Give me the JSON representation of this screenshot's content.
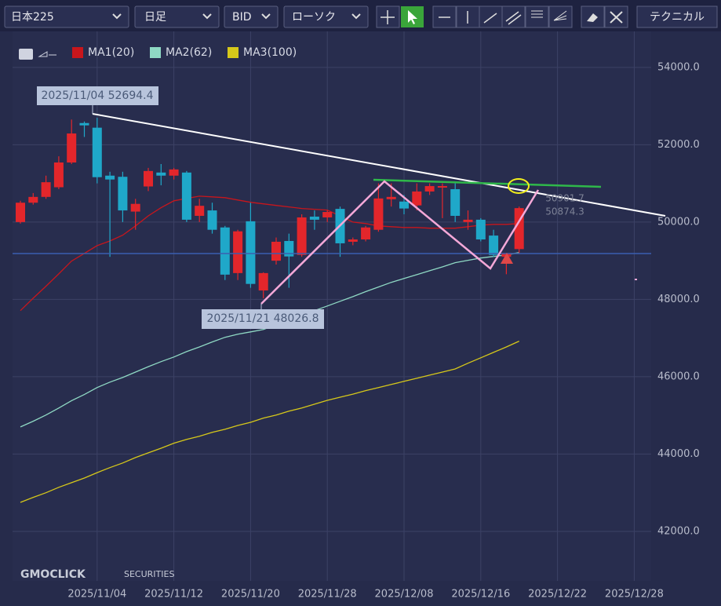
{
  "toolbar": {
    "symbol": "日本225",
    "period": "日足",
    "price": "BID",
    "chart_style": "ローソク",
    "technical": "テクニカル"
  },
  "watermark": {
    "brand": "GMOCLICK",
    "suffix": "SECURITIES"
  },
  "chart_data": {
    "type": "candlestick",
    "categories": [
      null,
      null,
      null,
      null,
      null,
      null,
      "2025/11/04",
      null,
      null,
      null,
      null,
      null,
      "2025/11/12",
      null,
      null,
      null,
      null,
      null,
      "2025/11/20",
      null,
      null,
      null,
      null,
      null,
      "2025/11/28",
      null,
      null,
      null,
      null,
      null,
      "2025/12/08",
      null,
      null,
      null,
      null,
      null,
      "2025/12/16",
      null,
      null,
      null,
      null,
      null,
      "2025/12/22",
      null,
      null,
      null,
      null,
      null,
      "2025/12/28"
    ],
    "open": [
      50000,
      50500,
      50650,
      50900,
      51540,
      52560,
      52440,
      51200,
      51170,
      50270,
      50920,
      51280,
      51200,
      51280,
      50160,
      50300,
      49860,
      48680,
      50020,
      48230,
      49000,
      49510,
      49150,
      50140,
      50120,
      50340,
      49490,
      49550,
      49800,
      50590,
      50530,
      50430,
      50790,
      50890,
      50850,
      50000,
      50060,
      49650,
      49100,
      49300,
      null,
      null,
      null,
      null,
      null,
      null,
      null,
      null,
      null
    ],
    "high": [
      50550,
      50750,
      51200,
      51700,
      52650,
      52600,
      52694.4,
      51300,
      51300,
      50600,
      51400,
      51500,
      51400,
      51320,
      50600,
      50500,
      49900,
      49800,
      50500,
      48700,
      49600,
      49700,
      50200,
      50300,
      50300,
      50400,
      49600,
      49900,
      51000,
      51000,
      50700,
      51000,
      51000,
      51000,
      51000,
      50300,
      50100,
      49800,
      49200,
      50400,
      null,
      null,
      null,
      null,
      null,
      null,
      null,
      null,
      null
    ],
    "low": [
      49960,
      50450,
      50600,
      50850,
      51500,
      52200,
      51000,
      49100,
      50000,
      49800,
      50800,
      50950,
      51100,
      50000,
      50000,
      49700,
      48500,
      48500,
      48300,
      48026.8,
      48900,
      48300,
      49100,
      49800,
      50000,
      49100,
      49400,
      49500,
      49750,
      50400,
      50200,
      50300,
      50700,
      50100,
      50000,
      49800,
      49500,
      49100,
      48650,
      49200,
      null,
      null,
      null,
      null,
      null,
      null,
      null,
      null,
      null
    ],
    "close": [
      50500,
      50650,
      51030,
      51540,
      52290,
      52500,
      51160,
      51100,
      50300,
      50470,
      51320,
      51200,
      51360,
      50060,
      50420,
      49800,
      48640,
      49760,
      48400,
      48680,
      49490,
      49110,
      50120,
      50060,
      50260,
      49450,
      49550,
      49860,
      50610,
      50650,
      50350,
      50790,
      50930,
      50930,
      50160,
      50060,
      49550,
      49150,
      49200,
      50360,
      null,
      null,
      null,
      null,
      null,
      null,
      null,
      null,
      null
    ],
    "up_color": "#e3262b",
    "down_color": "#1fa8c9",
    "series": [
      {
        "name": "MA1(20)",
        "color": "#c8161c",
        "values": [
          47710,
          48030,
          48340,
          48660,
          48990,
          49190,
          49390,
          49510,
          49660,
          49900,
          50160,
          50370,
          50550,
          50610,
          50670,
          50650,
          50630,
          50570,
          50510,
          50470,
          50430,
          50390,
          50350,
          50330,
          50310,
          50160,
          50000,
          49960,
          49900,
          49880,
          49860,
          49860,
          49840,
          49840,
          49840,
          49880,
          49920,
          49940,
          49940,
          49960,
          null,
          null,
          null,
          null,
          null,
          null,
          null,
          null,
          null
        ]
      },
      {
        "name": "MA2(62)",
        "color": "#8fd9c4",
        "values": [
          44700,
          44850,
          45010,
          45190,
          45380,
          45540,
          45720,
          45860,
          45980,
          46120,
          46260,
          46390,
          46510,
          46650,
          46770,
          46900,
          47020,
          47100,
          47160,
          47220,
          47340,
          47460,
          47590,
          47710,
          47830,
          47950,
          48070,
          48200,
          48320,
          48440,
          48540,
          48640,
          48740,
          48840,
          48950,
          49010,
          49070,
          49110,
          49150,
          49210,
          null,
          null,
          null,
          null,
          null,
          null,
          null,
          null,
          null
        ]
      },
      {
        "name": "MA3(100)",
        "color": "#d6c81a",
        "values": [
          42750,
          42880,
          43000,
          43140,
          43260,
          43380,
          43520,
          43650,
          43770,
          43910,
          44030,
          44150,
          44280,
          44380,
          44460,
          44560,
          44640,
          44740,
          44820,
          44930,
          45010,
          45110,
          45190,
          45290,
          45390,
          45470,
          45550,
          45640,
          45720,
          45800,
          45880,
          45960,
          46040,
          46120,
          46200,
          46350,
          46490,
          46630,
          46770,
          46920,
          null,
          null,
          null,
          null,
          null,
          null,
          null,
          null,
          null
        ]
      }
    ],
    "ylim": [
      40720,
      54930
    ],
    "yticks": [
      {
        "value": 42000,
        "label": "42000.0"
      },
      {
        "value": 44000,
        "label": "44000.0"
      },
      {
        "value": 46000,
        "label": "46000.0"
      },
      {
        "value": 48000,
        "label": "48000.0"
      },
      {
        "value": 50000,
        "label": "50000.0"
      },
      {
        "value": 52000,
        "label": "52000.0"
      },
      {
        "value": 54000,
        "label": "54000.0"
      }
    ],
    "grid": true,
    "annotations": [
      "2025/11/04 52694.4",
      "2025/11/21 48026.8",
      "50901.7",
      "50874.3"
    ]
  }
}
